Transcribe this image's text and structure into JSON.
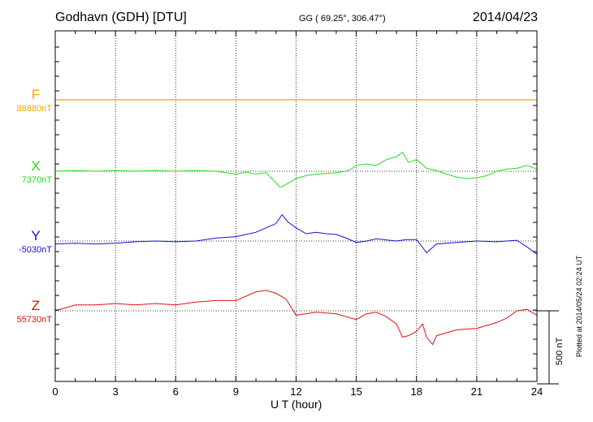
{
  "header": {
    "station": "Godhavn (GDH)  [DTU]",
    "coordinates": "GG ( 69.25°, 306.47°)",
    "date": "2014/04/23"
  },
  "footer": {
    "plotted_note": "Plotted at 2014/05/24 02:24  UT"
  },
  "chart_data": {
    "type": "line",
    "xlabel": "U T (hour)",
    "xlim": [
      0,
      24
    ],
    "x_ticks": [
      "0",
      "3",
      "6",
      "9",
      "12",
      "15",
      "18",
      "21",
      "24"
    ],
    "grid": true,
    "scale_bar": {
      "label": "500 nT",
      "value_nT": 500
    },
    "series": [
      {
        "name": "F",
        "baseline_label": "88880nT",
        "color": "#f5a500",
        "x": [
          0,
          24
        ],
        "y": [
          0,
          0
        ]
      },
      {
        "name": "X",
        "baseline_label": "7370nT",
        "color": "#22dd22",
        "x": [
          0,
          1,
          2,
          3,
          4,
          5,
          6,
          7,
          8,
          8.5,
          9,
          9.5,
          10,
          10.5,
          11,
          11.2,
          11.5,
          12,
          12.5,
          13,
          13.5,
          14,
          14.5,
          14.8,
          15,
          15.5,
          16,
          16.5,
          17,
          17.3,
          17.6,
          18,
          18.5,
          19,
          19.5,
          20,
          20.5,
          21,
          21.5,
          22,
          22.5,
          23,
          23.5,
          24
        ],
        "y": [
          0,
          5,
          0,
          5,
          0,
          5,
          0,
          5,
          0,
          -10,
          -20,
          -5,
          -20,
          -10,
          -80,
          -110,
          -90,
          -50,
          -30,
          -20,
          -15,
          -10,
          0,
          20,
          40,
          50,
          40,
          80,
          100,
          130,
          60,
          80,
          20,
          5,
          -20,
          -40,
          -50,
          -45,
          -30,
          0,
          15,
          20,
          40,
          15
        ]
      },
      {
        "name": "Y",
        "baseline_label": "-5030nT",
        "color": "#1010dd",
        "x": [
          0,
          1,
          2,
          3,
          4,
          5,
          6,
          7,
          8,
          9,
          10,
          10.5,
          11,
          11.3,
          11.6,
          12,
          12.5,
          13,
          13.5,
          14,
          14.5,
          15,
          15.5,
          16,
          17,
          17.5,
          18,
          18.5,
          19,
          20,
          21,
          22,
          23,
          23.5,
          24
        ],
        "y": [
          -20,
          -15,
          -20,
          -15,
          -5,
          0,
          -5,
          0,
          20,
          30,
          60,
          90,
          120,
          180,
          130,
          90,
          50,
          60,
          50,
          45,
          20,
          -10,
          0,
          15,
          0,
          10,
          10,
          -80,
          -20,
          -10,
          0,
          -5,
          5,
          -40,
          -90
        ]
      },
      {
        "name": "Z",
        "baseline_label": "55730nT",
        "color": "#e01010",
        "x": [
          0,
          1,
          2,
          3,
          4,
          5,
          6,
          7,
          8,
          9,
          9.5,
          10,
          10.5,
          11,
          11.5,
          12,
          12.5,
          13,
          14,
          15,
          15.5,
          16,
          16.5,
          17,
          17.3,
          17.6,
          18,
          18.3,
          18.5,
          18.8,
          19,
          20,
          21,
          22,
          22.5,
          23,
          23.5,
          24
        ],
        "y": [
          0,
          40,
          40,
          50,
          40,
          50,
          40,
          60,
          70,
          70,
          100,
          130,
          140,
          120,
          80,
          -30,
          -20,
          -10,
          -20,
          -60,
          -20,
          -10,
          -40,
          -90,
          -180,
          -170,
          -140,
          -90,
          -180,
          -230,
          -170,
          -130,
          -120,
          -80,
          -50,
          0,
          10,
          -30
        ]
      }
    ]
  }
}
